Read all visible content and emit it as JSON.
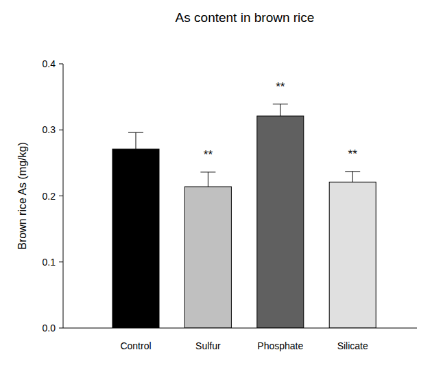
{
  "chart_data": {
    "type": "bar",
    "title": "As content in brown rice",
    "y_label": "Brown rice As (mg/kg)",
    "categories": [
      "Control",
      "Sulfur",
      "Phosphate",
      "Silicate"
    ],
    "values": [
      0.271,
      0.214,
      0.321,
      0.221
    ],
    "errors": [
      0.025,
      0.022,
      0.018,
      0.016
    ],
    "colors": [
      "#000000",
      "#c0c0c0",
      "#606060",
      "#e0e0e0"
    ],
    "annotations": [
      null,
      "**",
      "**",
      "**"
    ],
    "ylim": [
      0,
      0.4
    ],
    "yticks": [
      {
        "value": 0,
        "label": "0.0"
      },
      0.1,
      0.2,
      0.3,
      0.4
    ],
    "grid": false
  }
}
